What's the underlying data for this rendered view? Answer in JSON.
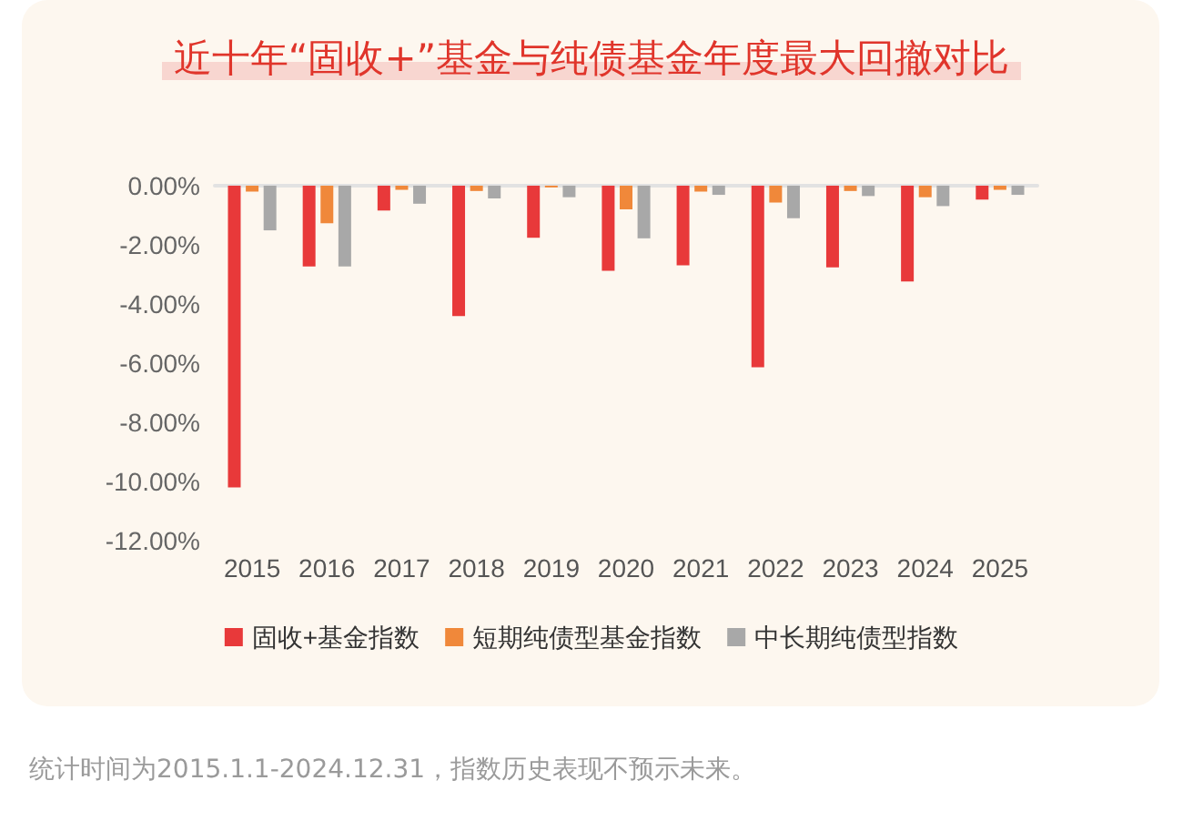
{
  "chart_data": {
    "type": "bar",
    "title": "近十年“固收+”基金与纯债基金年度最大回撤对比",
    "categories": [
      "2015",
      "2016",
      "2017",
      "2018",
      "2019",
      "2020",
      "2021",
      "2022",
      "2023",
      "2024",
      "2025"
    ],
    "series": [
      {
        "name": "固收+基金指数",
        "color": "#e8393a",
        "values": [
          -10.2,
          -2.73,
          -0.84,
          -4.41,
          -1.76,
          -2.88,
          -2.69,
          -6.14,
          -2.76,
          -3.24,
          -0.47
        ]
      },
      {
        "name": "短期纯债型基金指数",
        "color": "#f0883a",
        "values": [
          -0.2,
          -1.27,
          -0.14,
          -0.18,
          -0.06,
          -0.8,
          -0.2,
          -0.57,
          -0.18,
          -0.39,
          -0.14
        ]
      },
      {
        "name": "中长期纯债型指数",
        "color": "#a8a8a8",
        "values": [
          -1.51,
          -2.73,
          -0.61,
          -0.43,
          -0.39,
          -1.78,
          -0.31,
          -1.1,
          -0.35,
          -0.69,
          -0.31
        ]
      }
    ],
    "ylim": [
      -12,
      0
    ],
    "yticks": [
      {
        "value": 0,
        "label": "0.00%"
      },
      {
        "value": -2,
        "label": "-2.00%"
      },
      {
        "value": -4,
        "label": "-4.00%"
      },
      {
        "value": -6,
        "label": "-6.00%"
      },
      {
        "value": -8,
        "label": "-8.00%"
      },
      {
        "value": -10,
        "label": "-10.00%"
      },
      {
        "value": -12,
        "label": "-12.00%"
      }
    ],
    "grid": false,
    "legend": "bottom",
    "annotations": [
      "统计时间为2015.1.1-2024.12.31，指数历史表现不预示未来。"
    ]
  }
}
